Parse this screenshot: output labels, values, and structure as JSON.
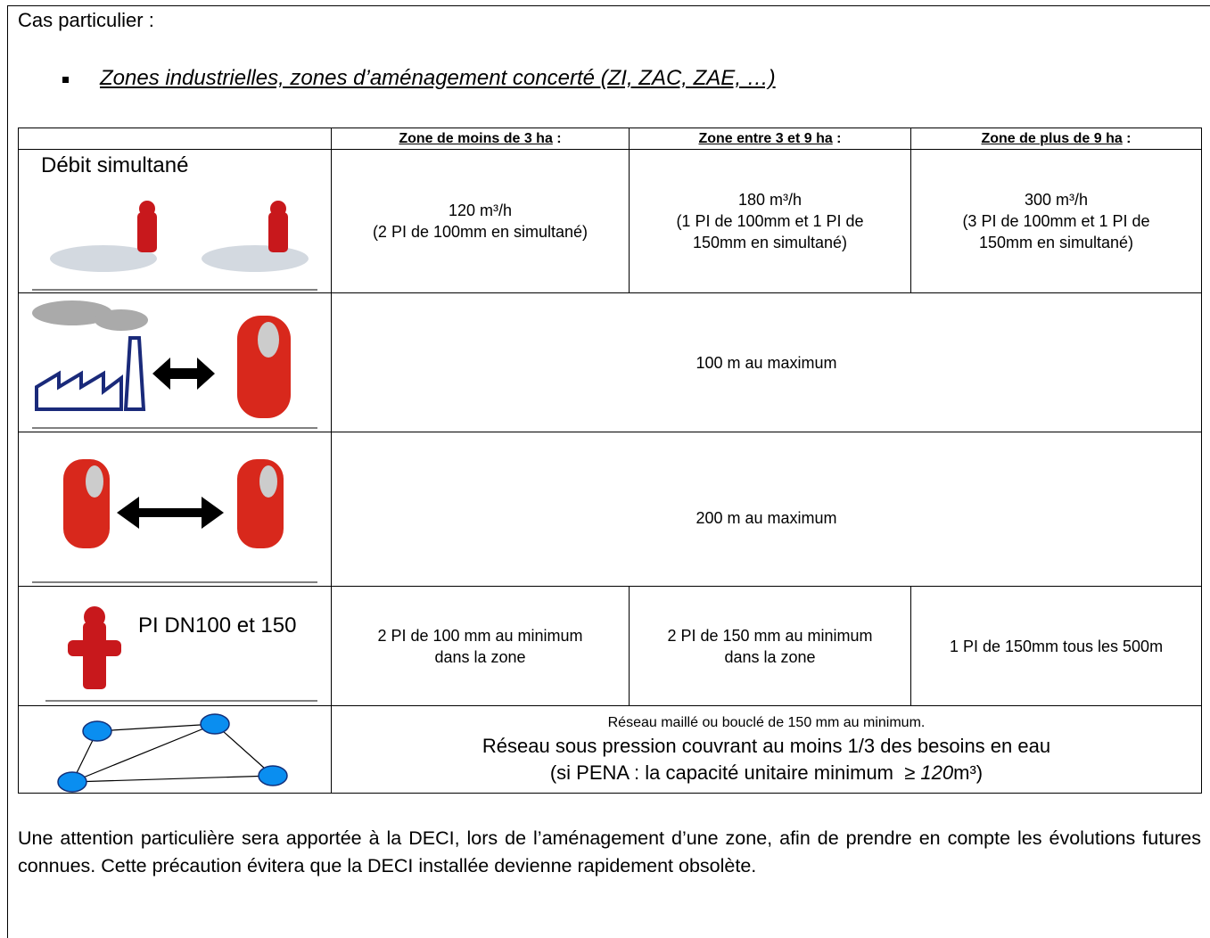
{
  "heading": "Cas particulier :",
  "bullet": "Zones industrielles, zones d’aménagement concerté (ZI, ZAC, ZAE, …)",
  "table": {
    "headers": [
      {
        "underlined": "Zone de moins de 3 ha",
        "rest": " :"
      },
      {
        "underlined": "Zone entre 3 et 9 ha",
        "rest": " :"
      },
      {
        "underlined": "Zone de plus de 9 ha",
        "rest": " :"
      }
    ],
    "rows": [
      {
        "label": "Débit simultané",
        "cells": [
          [
            "120 m³/h",
            "(2 PI de 100mm en simultané)"
          ],
          [
            "180 m³/h",
            "(1 PI de 100mm et 1 PI de",
            "150mm en simultané)"
          ],
          [
            "300 m³/h",
            "(3 PI de 100mm et 1 PI de",
            "150mm en simultané)"
          ]
        ]
      },
      {
        "cells": [
          [
            "100 m au maximum"
          ]
        ]
      },
      {
        "cells": [
          [
            "200 m au maximum"
          ]
        ]
      },
      {
        "label": "PI DN100 et 150",
        "cells": [
          [
            "2 PI de 100 mm au minimum",
            "dans la zone"
          ],
          [
            "2 PI de 150 mm au minimum",
            "dans la zone"
          ],
          [
            "1 PI de 150mm tous les 500m"
          ]
        ]
      },
      {
        "small": "Réseau maillé ou bouclé de 150 mm au minimum.",
        "line": "Réseau sous pression couvrant au moins 1/3 des besoins en eau",
        "last": {
          "before": "(si PENA : la capacité unitaire minimum  ≥ ",
          "italic": "120",
          "after": "m³)"
        }
      }
    ]
  },
  "paragraph": "Une attention particulière sera apportée à la DECI, lors de l’aménagement d’une zone, afin de prendre en compte les évolutions futures connues. Cette précaution évitera que la DECI installée devienne rapidement obsolète."
}
